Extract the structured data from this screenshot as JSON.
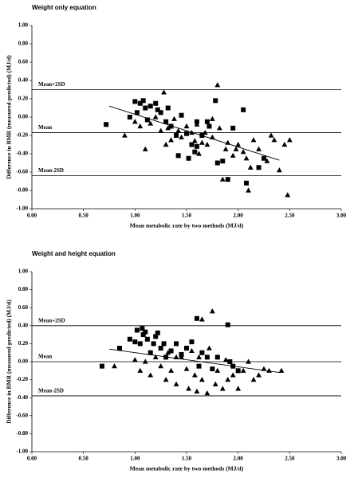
{
  "chart_data": [
    {
      "type": "scatter",
      "title": "Weight only equation",
      "x_label": "Mean metabolic rate by two methods (MJ/d)",
      "y_label": "Difference in BMR (measured-predicted) (MJ/d)",
      "xlim": [
        0,
        3
      ],
      "ylim": [
        -1,
        1
      ],
      "xticks": [
        {
          "value": 0,
          "label": "0.00"
        },
        {
          "value": 0.5,
          "label": "0.50"
        },
        {
          "value": 1,
          "label": "1.00"
        },
        {
          "value": 1.5,
          "label": "1.50"
        },
        {
          "value": 2,
          "label": "2.00"
        },
        {
          "value": 2.5,
          "label": "2.50"
        },
        {
          "value": 3,
          "label": "3.00"
        }
      ],
      "yticks": [
        {
          "value": 1,
          "label": "1.00"
        },
        {
          "value": 0.8,
          "label": "0.80"
        },
        {
          "value": 0.6,
          "label": "0.60"
        },
        {
          "value": 0.4,
          "label": "0.40"
        },
        {
          "value": 0.2,
          "label": "0.20"
        },
        {
          "value": 0,
          "label": "0.00"
        },
        {
          "value": -0.2,
          "label": "-0.20"
        },
        {
          "value": -0.4,
          "label": "-0.40"
        },
        {
          "value": -0.6,
          "label": "-0.60"
        },
        {
          "value": -0.8,
          "label": "-0.80"
        },
        {
          "value": -1,
          "label": "-1.00"
        }
      ],
      "reference_lines": [
        {
          "label": "Mean+2SD",
          "value": 0.3
        },
        {
          "label": "Mean",
          "value": -0.17
        },
        {
          "label": "Mean-2SD",
          "value": -0.64
        }
      ],
      "trend_line": {
        "x": [
          0.75,
          2.4
        ],
        "y": [
          0.12,
          -0.47
        ]
      },
      "series": [
        {
          "marker": "square",
          "color": "#000000",
          "x": [
            0.72,
            0.95,
            1.0,
            1.02,
            1.05,
            1.08,
            1.1,
            1.12,
            1.15,
            1.2,
            1.22,
            1.25,
            1.3,
            1.32,
            1.35,
            1.4,
            1.45,
            1.5,
            1.52,
            1.55,
            1.58,
            1.6,
            1.65,
            1.7,
            1.72,
            1.78,
            1.8,
            1.85,
            1.9,
            1.95,
            2.05,
            2.08,
            2.25,
            2.2,
            1.6,
            1.42
          ],
          "y": [
            -0.08,
            0.0,
            0.17,
            0.05,
            0.15,
            0.18,
            0.1,
            -0.03,
            0.12,
            0.15,
            0.08,
            0.05,
            -0.05,
            0.1,
            -0.1,
            -0.2,
            0.02,
            -0.18,
            -0.45,
            -0.3,
            -0.38,
            -0.32,
            -0.2,
            -0.05,
            -0.1,
            0.18,
            -0.5,
            -0.48,
            -0.68,
            -0.12,
            0.08,
            -0.72,
            -0.45,
            -0.55,
            -0.05,
            -0.42
          ]
        },
        {
          "marker": "triangle",
          "color": "#000000",
          "x": [
            0.9,
            1.0,
            1.05,
            1.1,
            1.15,
            1.2,
            1.25,
            1.28,
            1.32,
            1.35,
            1.38,
            1.42,
            1.45,
            1.5,
            1.55,
            1.58,
            1.6,
            1.62,
            1.65,
            1.68,
            1.7,
            1.75,
            1.8,
            1.82,
            1.85,
            1.88,
            1.9,
            1.95,
            1.98,
            2.0,
            2.05,
            2.08,
            2.1,
            2.12,
            2.15,
            2.2,
            2.28,
            2.32,
            2.35,
            2.4,
            2.45,
            2.48,
            2.5,
            1.75,
            1.3
          ],
          "y": [
            -0.2,
            -0.05,
            -0.1,
            -0.35,
            -0.07,
            0.0,
            -0.15,
            0.27,
            -0.12,
            -0.25,
            -0.02,
            -0.15,
            -0.22,
            -0.1,
            -0.17,
            -0.26,
            -0.08,
            -0.4,
            -0.28,
            -0.17,
            -0.3,
            -0.22,
            0.35,
            -0.12,
            -0.68,
            -0.35,
            -0.28,
            -0.42,
            -0.35,
            -0.3,
            -0.38,
            -0.45,
            -0.8,
            -0.55,
            -0.25,
            -0.35,
            -0.48,
            -0.2,
            -0.25,
            -0.58,
            -0.3,
            -0.85,
            -0.25,
            -0.02,
            -0.3
          ]
        }
      ]
    },
    {
      "type": "scatter",
      "title": "Weight and height equation",
      "x_label": "Mean metabolic rate by two methods (MJ/d)",
      "y_label": "Difference in BMR (measured-predicted) (MJ/d)",
      "xlim": [
        0,
        3
      ],
      "ylim": [
        -1,
        1
      ],
      "xticks": [
        {
          "value": 0,
          "label": "0.00"
        },
        {
          "value": 0.5,
          "label": "0.50"
        },
        {
          "value": 1,
          "label": "1.00"
        },
        {
          "value": 1.5,
          "label": "1.50"
        },
        {
          "value": 2,
          "label": "2.00"
        },
        {
          "value": 2.5,
          "label": "2.50"
        },
        {
          "value": 3,
          "label": "3.00"
        }
      ],
      "yticks": [
        {
          "value": 1,
          "label": "1.00"
        },
        {
          "value": 0.8,
          "label": "0.80"
        },
        {
          "value": 0.6,
          "label": "0.60"
        },
        {
          "value": 0.4,
          "label": "0.40"
        },
        {
          "value": 0.2,
          "label": "0.20"
        },
        {
          "value": 0,
          "label": "0.00"
        },
        {
          "value": -0.2,
          "label": "-0.20"
        },
        {
          "value": -0.4,
          "label": "-0.40"
        },
        {
          "value": -0.6,
          "label": "-0.60"
        },
        {
          "value": -0.8,
          "label": "-0.80"
        },
        {
          "value": -1,
          "label": "-1.00"
        }
      ],
      "reference_lines": [
        {
          "label": "Mean+2SD",
          "value": 0.4
        },
        {
          "label": "Mean",
          "value": 0.0
        },
        {
          "label": "Mean-2SD",
          "value": -0.38
        }
      ],
      "trend_line": {
        "x": [
          0.75,
          2.4
        ],
        "y": [
          0.14,
          -0.12
        ]
      },
      "series": [
        {
          "marker": "square",
          "color": "#000000",
          "x": [
            0.68,
            0.85,
            0.95,
            1.0,
            1.02,
            1.05,
            1.07,
            1.08,
            1.1,
            1.12,
            1.15,
            1.18,
            1.2,
            1.22,
            1.25,
            1.28,
            1.3,
            1.35,
            1.4,
            1.45,
            1.5,
            1.55,
            1.6,
            1.62,
            1.65,
            1.7,
            1.75,
            1.8,
            1.9,
            1.92,
            1.95,
            2.0
          ],
          "y": [
            -0.05,
            0.15,
            0.25,
            0.22,
            0.35,
            0.2,
            0.37,
            0.3,
            0.33,
            0.25,
            0.1,
            0.2,
            0.28,
            0.32,
            0.15,
            0.2,
            0.05,
            0.12,
            0.2,
            0.08,
            0.15,
            0.22,
            0.48,
            -0.05,
            0.1,
            0.05,
            -0.08,
            0.05,
            0.41,
            0.0,
            -0.05,
            -0.1
          ]
        },
        {
          "marker": "triangle",
          "color": "#000000",
          "x": [
            0.8,
            1.0,
            1.05,
            1.1,
            1.15,
            1.2,
            1.25,
            1.3,
            1.32,
            1.35,
            1.4,
            1.45,
            1.5,
            1.52,
            1.55,
            1.58,
            1.6,
            1.62,
            1.65,
            1.7,
            1.72,
            1.75,
            1.78,
            1.8,
            1.85,
            1.88,
            1.9,
            1.95,
            2.0,
            2.05,
            2.1,
            2.15,
            2.2,
            2.25,
            2.3,
            2.42,
            1.65,
            1.4
          ],
          "y": [
            -0.05,
            0.02,
            -0.1,
            0.0,
            -0.15,
            0.05,
            -0.05,
            -0.2,
            0.1,
            -0.1,
            -0.25,
            0.05,
            -0.08,
            -0.3,
            0.12,
            -0.15,
            -0.33,
            0.05,
            -0.2,
            -0.35,
            0.15,
            0.56,
            -0.25,
            -0.1,
            -0.3,
            0.02,
            -0.2,
            -0.15,
            -0.3,
            -0.1,
            0.0,
            -0.2,
            -0.15,
            -0.08,
            -0.1,
            -0.1,
            0.47,
            0.05
          ]
        }
      ]
    }
  ]
}
